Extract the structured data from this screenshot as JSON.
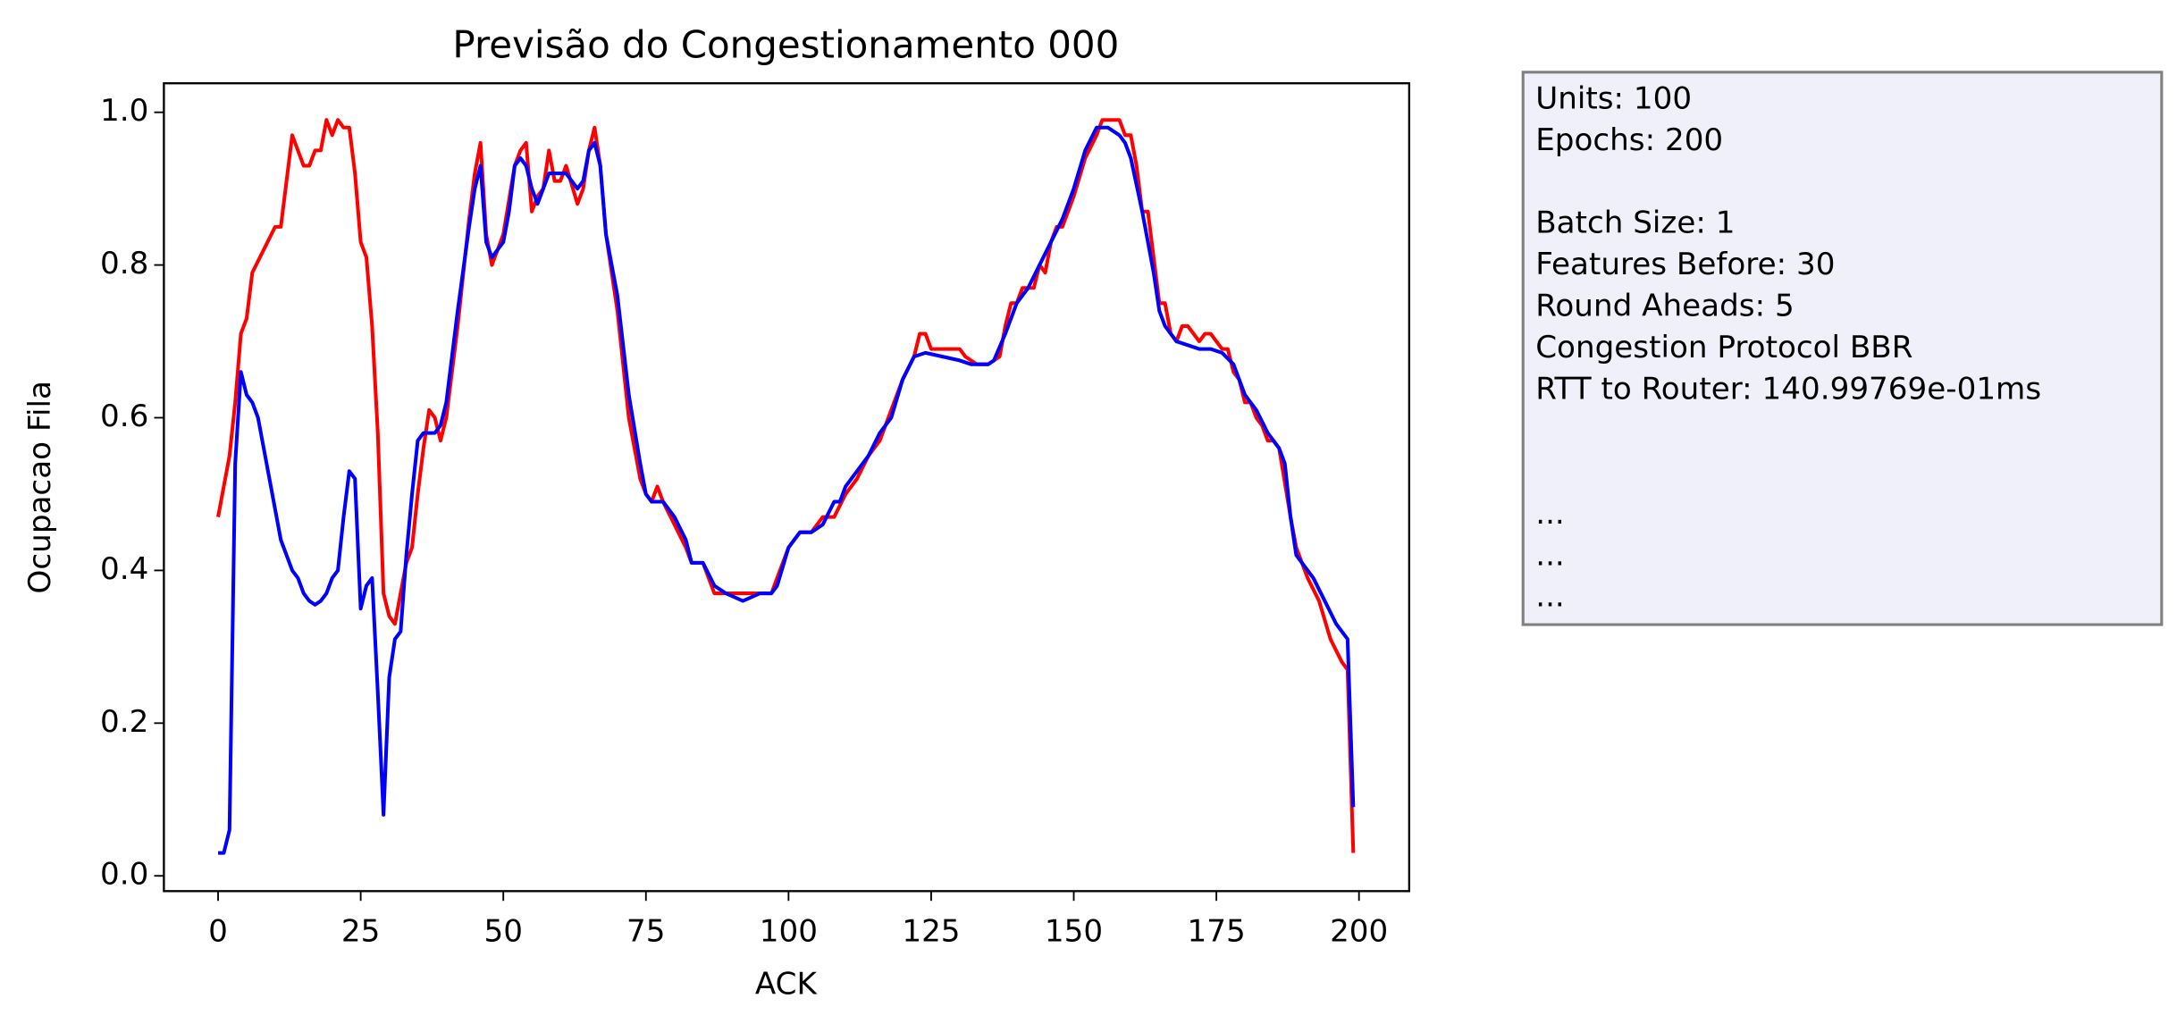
{
  "chart_data": {
    "type": "line",
    "title": "Previsão do Congestionamento 000",
    "xlabel": "ACK",
    "ylabel": "Ocupacao Fila",
    "xlim": [
      -9.5,
      208.8
    ],
    "ylim": [
      -0.02,
      1.038
    ],
    "xticks": [
      0,
      25,
      50,
      75,
      100,
      125,
      150,
      175,
      200
    ],
    "yticks": [
      {
        "value": 0,
        "label": "0.0"
      },
      0.2,
      0.4,
      0.6,
      0.8,
      {
        "value": 1,
        "label": "1.0"
      }
    ],
    "series": [
      {
        "color": "#ff0000",
        "x": [
          0,
          2,
          3,
          4,
          5,
          6,
          8,
          10,
          11,
          12,
          13,
          14,
          15,
          16,
          17,
          18,
          19,
          20,
          21,
          22,
          23,
          24,
          25,
          26,
          27,
          28,
          29,
          30,
          31,
          32,
          33,
          34,
          35,
          36,
          37,
          38,
          39,
          40,
          42,
          44,
          45,
          46,
          47,
          48,
          50,
          52,
          53,
          54,
          55,
          56,
          57,
          58,
          59,
          60,
          61,
          63,
          64,
          65,
          66,
          67,
          68,
          70,
          72,
          74,
          75,
          76,
          77,
          78,
          80,
          82,
          83,
          85,
          87,
          89,
          91,
          95,
          97,
          98,
          100,
          102,
          104,
          106,
          108,
          110,
          112,
          114,
          116,
          118,
          120,
          122,
          123,
          124,
          125,
          127,
          130,
          131,
          133,
          135,
          137,
          138,
          139,
          140,
          141,
          143,
          144,
          145,
          146,
          147,
          148,
          150,
          152,
          154,
          155,
          157,
          158,
          159,
          160,
          161,
          162,
          163,
          164,
          165,
          166,
          167,
          168,
          169,
          170,
          171,
          172,
          173,
          174,
          175,
          176,
          177,
          178,
          179,
          180,
          181,
          182,
          183,
          184,
          185,
          186,
          188,
          189,
          190,
          191,
          193,
          195,
          197,
          198,
          199
        ],
        "values": [
          0.47,
          0.55,
          0.62,
          0.71,
          0.73,
          0.79,
          0.82,
          0.85,
          0.85,
          0.91,
          0.97,
          0.95,
          0.93,
          0.93,
          0.95,
          0.95,
          0.99,
          0.97,
          0.99,
          0.98,
          0.98,
          0.92,
          0.83,
          0.81,
          0.72,
          0.58,
          0.37,
          0.34,
          0.33,
          0.37,
          0.41,
          0.43,
          0.5,
          0.56,
          0.61,
          0.6,
          0.57,
          0.6,
          0.72,
          0.86,
          0.92,
          0.96,
          0.84,
          0.8,
          0.84,
          0.93,
          0.95,
          0.96,
          0.87,
          0.89,
          0.9,
          0.95,
          0.91,
          0.91,
          0.93,
          0.88,
          0.9,
          0.95,
          0.98,
          0.93,
          0.84,
          0.74,
          0.6,
          0.52,
          0.5,
          0.49,
          0.51,
          0.49,
          0.46,
          0.43,
          0.41,
          0.41,
          0.37,
          0.37,
          0.37,
          0.37,
          0.37,
          0.39,
          0.43,
          0.45,
          0.45,
          0.47,
          0.47,
          0.5,
          0.52,
          0.55,
          0.57,
          0.61,
          0.65,
          0.68,
          0.71,
          0.71,
          0.69,
          0.69,
          0.69,
          0.68,
          0.67,
          0.67,
          0.68,
          0.72,
          0.75,
          0.75,
          0.77,
          0.77,
          0.8,
          0.79,
          0.83,
          0.85,
          0.85,
          0.89,
          0.94,
          0.97,
          0.99,
          0.99,
          0.99,
          0.97,
          0.97,
          0.93,
          0.87,
          0.87,
          0.81,
          0.75,
          0.75,
          0.71,
          0.7,
          0.72,
          0.72,
          0.71,
          0.7,
          0.71,
          0.71,
          0.7,
          0.69,
          0.69,
          0.66,
          0.65,
          0.62,
          0.62,
          0.6,
          0.59,
          0.57,
          0.57,
          0.56,
          0.47,
          0.43,
          0.41,
          0.39,
          0.36,
          0.31,
          0.28,
          0.27,
          0.03
        ]
      },
      {
        "color": "#0000ff",
        "x": [
          0,
          1,
          2,
          3,
          4,
          5,
          6,
          7,
          8,
          9,
          10,
          11,
          12,
          13,
          14,
          15,
          16,
          17,
          18,
          19,
          20,
          21,
          22,
          23,
          24,
          25,
          26,
          27,
          28,
          29,
          30,
          31,
          32,
          33,
          34,
          35,
          36,
          38,
          39,
          40,
          42,
          44,
          45,
          46,
          47,
          48,
          50,
          51,
          52,
          53,
          54,
          55,
          56,
          57,
          58,
          59,
          60,
          61,
          62,
          63,
          64,
          65,
          66,
          67,
          68,
          70,
          72,
          74,
          75,
          76,
          78,
          80,
          82,
          83,
          85,
          87,
          89,
          92,
          95,
          97,
          98,
          100,
          102,
          104,
          106,
          108,
          109,
          110,
          112,
          114,
          116,
          118,
          120,
          122,
          124,
          127,
          130,
          132,
          135,
          136,
          138,
          140,
          142,
          144,
          146,
          148,
          150,
          152,
          154,
          156,
          158,
          159,
          160,
          162,
          164,
          165,
          166,
          168,
          170,
          172,
          174,
          176,
          178,
          180,
          182,
          184,
          185,
          186,
          187,
          188,
          189,
          190,
          192,
          194,
          196,
          198,
          199
        ],
        "values": [
          0.03,
          0.03,
          0.06,
          0.54,
          0.66,
          0.63,
          0.62,
          0.6,
          0.56,
          0.52,
          0.48,
          0.44,
          0.42,
          0.4,
          0.39,
          0.37,
          0.36,
          0.355,
          0.36,
          0.37,
          0.39,
          0.4,
          0.47,
          0.53,
          0.52,
          0.35,
          0.38,
          0.39,
          0.24,
          0.08,
          0.26,
          0.31,
          0.32,
          0.42,
          0.5,
          0.57,
          0.58,
          0.58,
          0.59,
          0.62,
          0.74,
          0.85,
          0.9,
          0.93,
          0.83,
          0.81,
          0.83,
          0.87,
          0.93,
          0.94,
          0.93,
          0.9,
          0.88,
          0.9,
          0.92,
          0.92,
          0.92,
          0.92,
          0.91,
          0.9,
          0.91,
          0.95,
          0.96,
          0.93,
          0.84,
          0.76,
          0.63,
          0.54,
          0.5,
          0.49,
          0.49,
          0.47,
          0.44,
          0.41,
          0.41,
          0.38,
          0.37,
          0.36,
          0.37,
          0.37,
          0.38,
          0.43,
          0.45,
          0.45,
          0.46,
          0.49,
          0.49,
          0.51,
          0.53,
          0.55,
          0.58,
          0.6,
          0.65,
          0.68,
          0.685,
          0.68,
          0.675,
          0.67,
          0.67,
          0.675,
          0.71,
          0.75,
          0.77,
          0.8,
          0.83,
          0.86,
          0.9,
          0.95,
          0.98,
          0.98,
          0.97,
          0.96,
          0.94,
          0.87,
          0.79,
          0.74,
          0.72,
          0.7,
          0.695,
          0.69,
          0.69,
          0.685,
          0.67,
          0.63,
          0.61,
          0.58,
          0.57,
          0.56,
          0.54,
          0.47,
          0.42,
          0.41,
          0.39,
          0.36,
          0.33,
          0.31,
          0.09
        ]
      }
    ],
    "textbox": [
      [
        "Units: 100",
        "Epochs: 200"
      ],
      [
        "Batch Size: 1",
        "Features Before: 30",
        "Round Aheads: 5",
        "Congestion Protocol BBR",
        "RTT to Router: 140.99769e-01ms"
      ],
      [
        "...",
        "...",
        "..."
      ]
    ]
  }
}
